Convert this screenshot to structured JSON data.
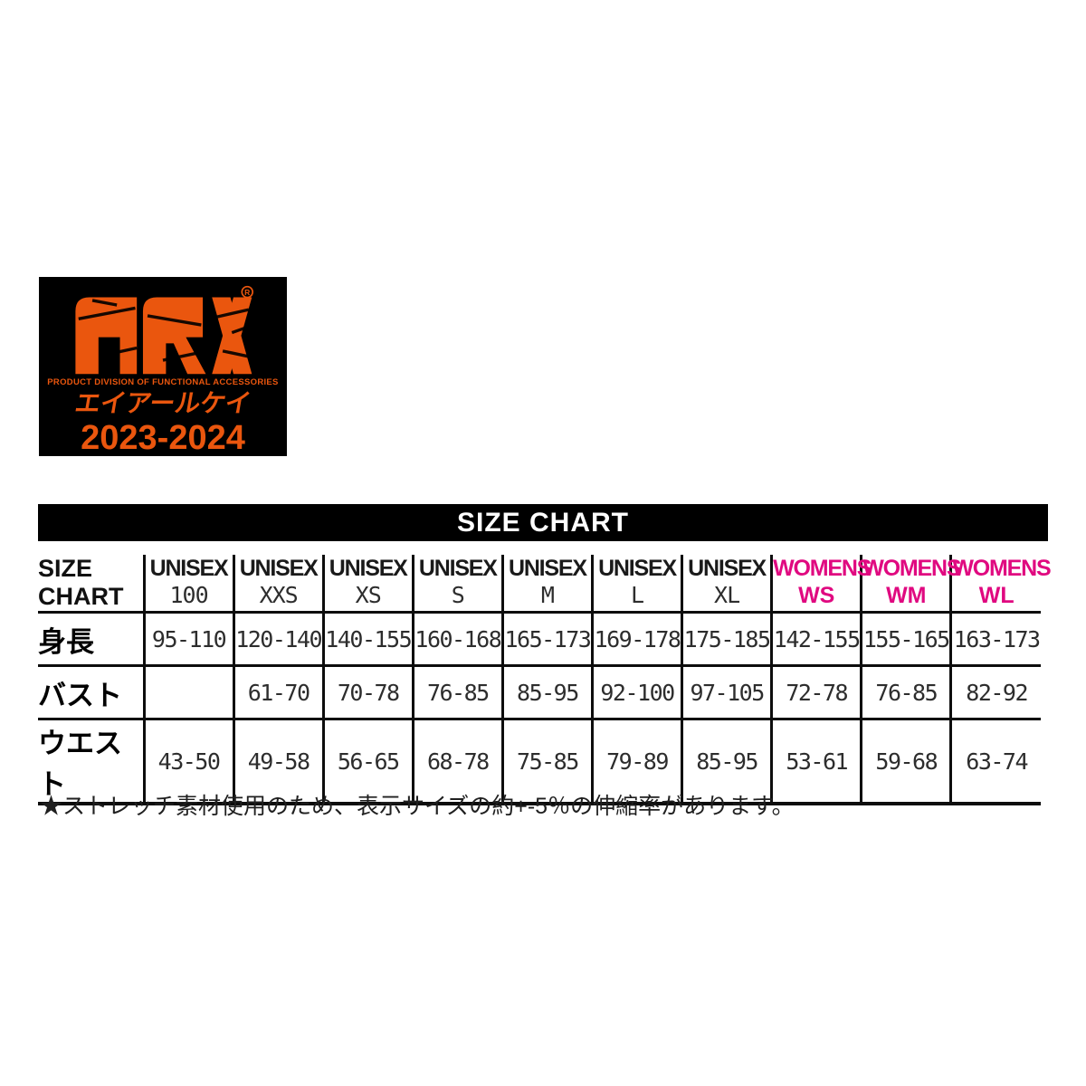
{
  "logo": {
    "brand": "ARK",
    "registered_mark": "®",
    "division_line": "PRODUCT DIVISION OF FUNCTIONAL ACCESSORIES",
    "brand_katakana": "エイアールケイ",
    "season": "2023-2024",
    "colors": {
      "background": "#000000",
      "orange": "#ea560e"
    }
  },
  "banner": {
    "title": "SIZE CHART",
    "background": "#000000",
    "text_color": "#ffffff"
  },
  "size_table": {
    "corner": {
      "line1": "SIZE",
      "line2": "CHART"
    },
    "columns": [
      {
        "group": "UNISEX",
        "size": "100",
        "color": "#1a1a1a"
      },
      {
        "group": "UNISEX",
        "size": "XXS",
        "color": "#1a1a1a"
      },
      {
        "group": "UNISEX",
        "size": "XS",
        "color": "#1a1a1a"
      },
      {
        "group": "UNISEX",
        "size": "S",
        "color": "#1a1a1a"
      },
      {
        "group": "UNISEX",
        "size": "M",
        "color": "#1a1a1a"
      },
      {
        "group": "UNISEX",
        "size": "L",
        "color": "#1a1a1a"
      },
      {
        "group": "UNISEX",
        "size": "XL",
        "color": "#1a1a1a"
      },
      {
        "group": "WOMENS",
        "size": "WS",
        "color": "#e00980"
      },
      {
        "group": "WOMENS",
        "size": "WM",
        "color": "#e00980"
      },
      {
        "group": "WOMENS",
        "size": "WL",
        "color": "#e00980"
      }
    ],
    "rows": [
      {
        "label": "身長",
        "values": [
          "95-110",
          "120-140",
          "140-155",
          "160-168",
          "165-173",
          "169-178",
          "175-185",
          "142-155",
          "155-165",
          "163-173"
        ]
      },
      {
        "label": "バスト",
        "values": [
          "",
          "61-70",
          "70-78",
          "76-85",
          "85-95",
          "92-100",
          "97-105",
          "72-78",
          "76-85",
          "82-92"
        ]
      },
      {
        "label": "ウエスト",
        "values": [
          "43-50",
          "49-58",
          "56-65",
          "68-78",
          "75-85",
          "79-89",
          "85-95",
          "53-61",
          "59-68",
          "63-74"
        ]
      }
    ]
  },
  "footnote": "★ストレッチ素材使用のため、表示サイズの約+-5％の伸縮率があります。"
}
